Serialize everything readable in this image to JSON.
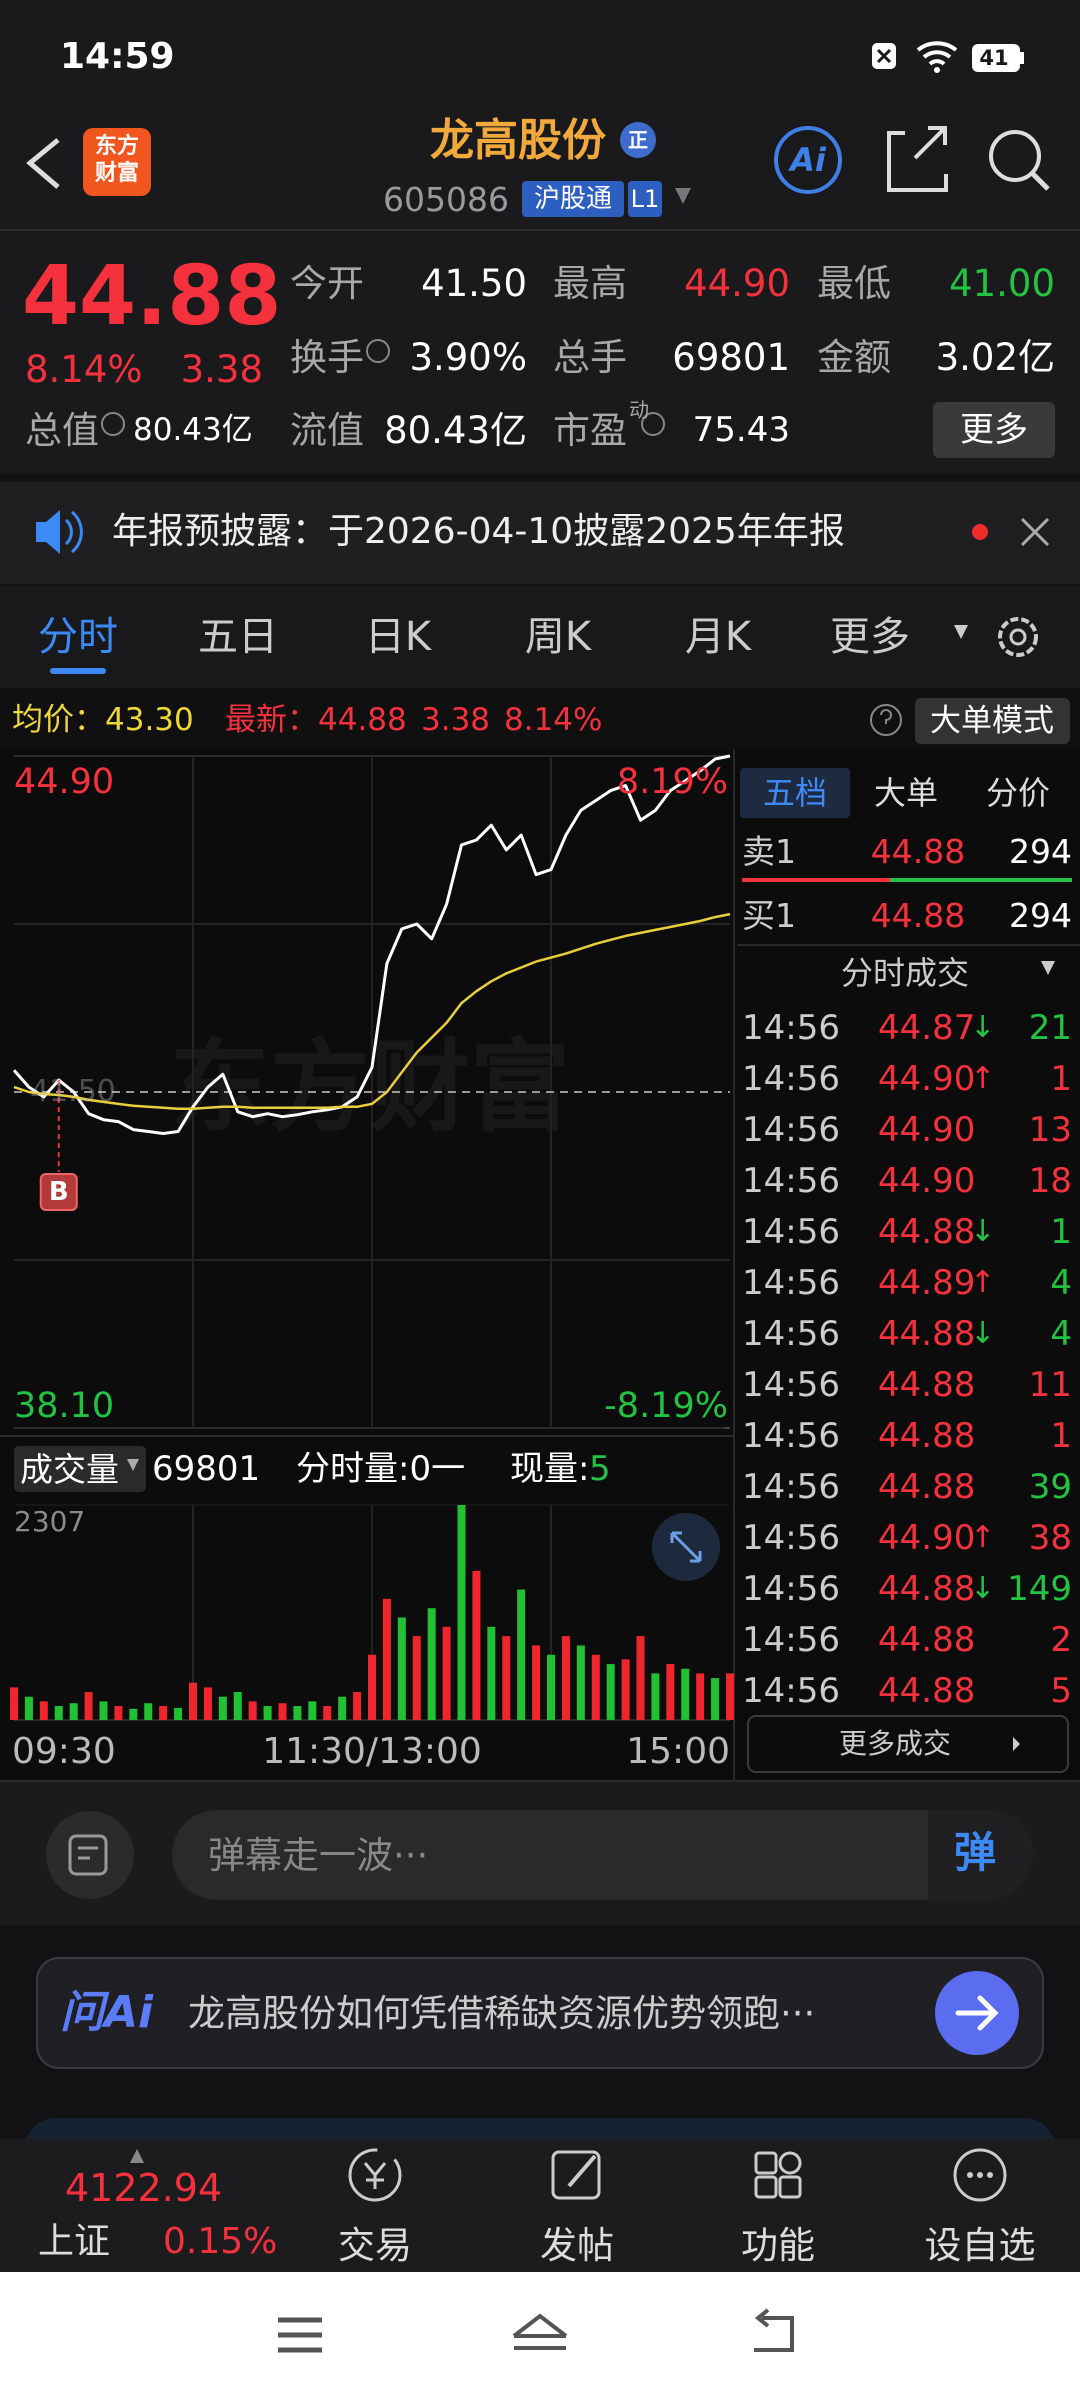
{
  "status_bar": {
    "time": "14:59",
    "battery": "41"
  },
  "header": {
    "logo": [
      "东方",
      "财富"
    ],
    "title": "龙高股份",
    "badge": "正",
    "code": "605086",
    "market": "沪股通",
    "level": "L1",
    "ai": "Ai"
  },
  "quote": {
    "price": "44.88",
    "change_pct": "8.14%",
    "change": "3.38",
    "fields": [
      {
        "label": "今开",
        "value": "41.50",
        "color": "#ffffff"
      },
      {
        "label": "最高",
        "value": "44.90",
        "color": "#f5313d"
      },
      {
        "label": "最低",
        "value": "41.00",
        "color": "#23c243"
      },
      {
        "label": "换手",
        "value": "3.90%",
        "color": "#ffffff"
      },
      {
        "label": "总手",
        "value": "69801",
        "color": "#ffffff"
      },
      {
        "label": "金额",
        "value": "3.02亿",
        "color": "#ffffff"
      },
      {
        "label": "总值",
        "value": "80.43亿",
        "color": "#ffffff"
      },
      {
        "label": "流值",
        "value": "80.43亿",
        "color": "#ffffff"
      },
      {
        "label": "市盈",
        "sup": "动",
        "value": "75.43",
        "color": "#ffffff"
      }
    ],
    "more": "更多"
  },
  "notice": {
    "text": "年报预披露：于2026-04-10披露2025年年报"
  },
  "tabs": {
    "items": [
      "分时",
      "五日",
      "日K",
      "周K",
      "月K",
      "更多"
    ],
    "active": 0
  },
  "info_bar": {
    "avg_label": "均价：",
    "avg": "43.30",
    "last_label": "最新：",
    "last": "44.88",
    "change": "3.38",
    "change_pct": "8.14%",
    "mode": "大单模式"
  },
  "chart_data": [
    {
      "type": "line",
      "watermark": "东方财富",
      "marker": {
        "label": "B",
        "x_index": 3
      },
      "ylim": [
        38.1,
        44.9
      ],
      "yticks": [
        {
          "value": 44.9,
          "label": "44.90"
        },
        {
          "value": 41.5,
          "label": "41.50"
        },
        {
          "value": 38.1,
          "label": "38.10"
        }
      ],
      "y2lim": [
        -8.19,
        8.19
      ],
      "y2ticks": [
        {
          "value": 8.19,
          "label": "8.19%"
        },
        {
          "value": -8.19,
          "label": "-8.19%"
        }
      ],
      "up_color": "#f5313d",
      "down_color": "#23c243",
      "series": [
        {
          "color": "#ffffff",
          "values": [
            41.72,
            41.55,
            41.45,
            41.62,
            41.5,
            41.28,
            41.22,
            41.2,
            41.12,
            41.1,
            41.08,
            41.1,
            41.35,
            41.55,
            41.68,
            41.3,
            41.25,
            41.28,
            41.25,
            41.27,
            41.3,
            41.32,
            41.35,
            41.45,
            41.75,
            42.8,
            43.15,
            43.2,
            43.05,
            43.4,
            44.0,
            44.05,
            44.2,
            43.95,
            44.1,
            43.7,
            43.75,
            44.1,
            44.35,
            44.45,
            44.55,
            44.6,
            44.25,
            44.35,
            44.55,
            44.65,
            44.75,
            44.87,
            44.9
          ]
        },
        {
          "color": "#e8cf3c",
          "values": [
            41.55,
            41.5,
            41.48,
            41.47,
            41.45,
            41.42,
            41.4,
            41.38,
            41.36,
            41.35,
            41.34,
            41.33,
            41.33,
            41.34,
            41.35,
            41.35,
            41.34,
            41.34,
            41.34,
            41.34,
            41.34,
            41.34,
            41.35,
            41.35,
            41.38,
            41.5,
            41.7,
            41.9,
            42.05,
            42.2,
            42.4,
            42.52,
            42.62,
            42.7,
            42.76,
            42.82,
            42.86,
            42.9,
            42.95,
            43.0,
            43.04,
            43.08,
            43.11,
            43.14,
            43.17,
            43.2,
            43.23,
            43.27,
            43.3
          ]
        }
      ]
    },
    {
      "type": "bar",
      "categories": [
        "09:30",
        null,
        null,
        null,
        null,
        null,
        null,
        null,
        null,
        null,
        null,
        null,
        null,
        null,
        null,
        null,
        null,
        null,
        null,
        null,
        null,
        null,
        null,
        null,
        "11:30/13:00",
        null,
        null,
        null,
        null,
        null,
        null,
        null,
        null,
        null,
        null,
        null,
        null,
        null,
        null,
        null,
        null,
        null,
        null,
        null,
        null,
        null,
        null,
        null,
        "15:00"
      ],
      "values": [
        350,
        250,
        200,
        150,
        180,
        300,
        200,
        150,
        120,
        180,
        150,
        130,
        400,
        350,
        250,
        300,
        200,
        150,
        180,
        150,
        200,
        150,
        250,
        300,
        700,
        1300,
        1100,
        900,
        1200,
        1000,
        2307,
        1600,
        1000,
        900,
        1400,
        800,
        700,
        900,
        800,
        700,
        600,
        650,
        900,
        500,
        600,
        550,
        500,
        450,
        500
      ],
      "colors": [
        "#f0262e",
        "#22c033",
        "#f0262e",
        "#22c033",
        "#22c033",
        "#f0262e",
        "#22c033",
        "#f0262e",
        "#22c033",
        "#22c033",
        "#f0262e",
        "#22c033",
        "#f0262e",
        "#f0262e",
        "#22c033",
        "#22c033",
        "#f0262e",
        "#22c033",
        "#f0262e",
        "#22c033",
        "#22c033",
        "#f0262e",
        "#22c033",
        "#f0262e",
        "#f0262e",
        "#f0262e",
        "#22c033",
        "#f0262e",
        "#22c033",
        "#f0262e",
        "#22c033",
        "#f0262e",
        "#22c033",
        "#f0262e",
        "#22c033",
        "#f0262e",
        "#22c033",
        "#f0262e",
        "#22c033",
        "#f0262e",
        "#22c033",
        "#f0262e",
        "#f0262e",
        "#22c033",
        "#f0262e",
        "#22c033",
        "#f0262e",
        "#22c033",
        "#f0262e"
      ],
      "ylim": [
        0,
        2307
      ],
      "yticks": [
        2307
      ]
    }
  ],
  "volume_bar": {
    "label": "成交量",
    "total": "69801",
    "minute_volume": "分时量:0一",
    "current_label": "现量:",
    "current": "5"
  },
  "order_book": {
    "tabs": [
      "五档",
      "大单",
      "分价"
    ],
    "active": 0,
    "rows": [
      {
        "label": "卖1",
        "price": "44.88",
        "volume": "294"
      },
      {
        "label": "买1",
        "price": "44.88",
        "volume": "294"
      }
    ],
    "trades_title": "分时成交",
    "trades": [
      {
        "time": "14:56",
        "price": "44.87",
        "dir": "↓",
        "dir_color": "#23c243",
        "volume": "21",
        "volume_color": "#23c243"
      },
      {
        "time": "14:56",
        "price": "44.90",
        "dir": "↑",
        "dir_color": "#f5313d",
        "volume": "1",
        "volume_color": "#f5313d"
      },
      {
        "time": "14:56",
        "price": "44.90",
        "volume": "13",
        "volume_color": "#f5313d"
      },
      {
        "time": "14:56",
        "price": "44.90",
        "volume": "18",
        "volume_color": "#f5313d"
      },
      {
        "time": "14:56",
        "price": "44.88",
        "dir": "↓",
        "dir_color": "#23c243",
        "volume": "1",
        "volume_color": "#23c243"
      },
      {
        "time": "14:56",
        "price": "44.89",
        "dir": "↑",
        "dir_color": "#f5313d",
        "volume": "4",
        "volume_color": "#23c243"
      },
      {
        "time": "14:56",
        "price": "44.88",
        "dir": "↓",
        "dir_color": "#23c243",
        "volume": "4",
        "volume_color": "#23c243"
      },
      {
        "time": "14:56",
        "price": "44.88",
        "volume": "11",
        "volume_color": "#f5313d"
      },
      {
        "time": "14:56",
        "price": "44.88",
        "volume": "1",
        "volume_color": "#f5313d"
      },
      {
        "time": "14:56",
        "price": "44.88",
        "volume": "39",
        "volume_color": "#23c243"
      },
      {
        "time": "14:56",
        "price": "44.90",
        "dir": "↑",
        "dir_color": "#f5313d",
        "volume": "38",
        "volume_color": "#f5313d"
      },
      {
        "time": "14:56",
        "price": "44.88",
        "dir": "↓",
        "dir_color": "#23c243",
        "volume": "149",
        "volume_color": "#23c243"
      },
      {
        "time": "14:56",
        "price": "44.88",
        "volume": "2",
        "volume_color": "#f5313d"
      },
      {
        "time": "14:56",
        "price": "44.88",
        "volume": "5",
        "volume_color": "#f5313d"
      }
    ],
    "more": "更多成交"
  },
  "danmaku": {
    "placeholder": "弹幕走一波···",
    "button": "弹"
  },
  "ai_banner": {
    "brand": "问Ai",
    "text": "龙高股份如何凭借稀缺资源优势领跑···"
  },
  "bottom_nav": {
    "index": {
      "value": "4122.94",
      "name": "上证",
      "change": "0.15%"
    },
    "items": [
      "交易",
      "发帖",
      "功能",
      "设自选"
    ]
  }
}
